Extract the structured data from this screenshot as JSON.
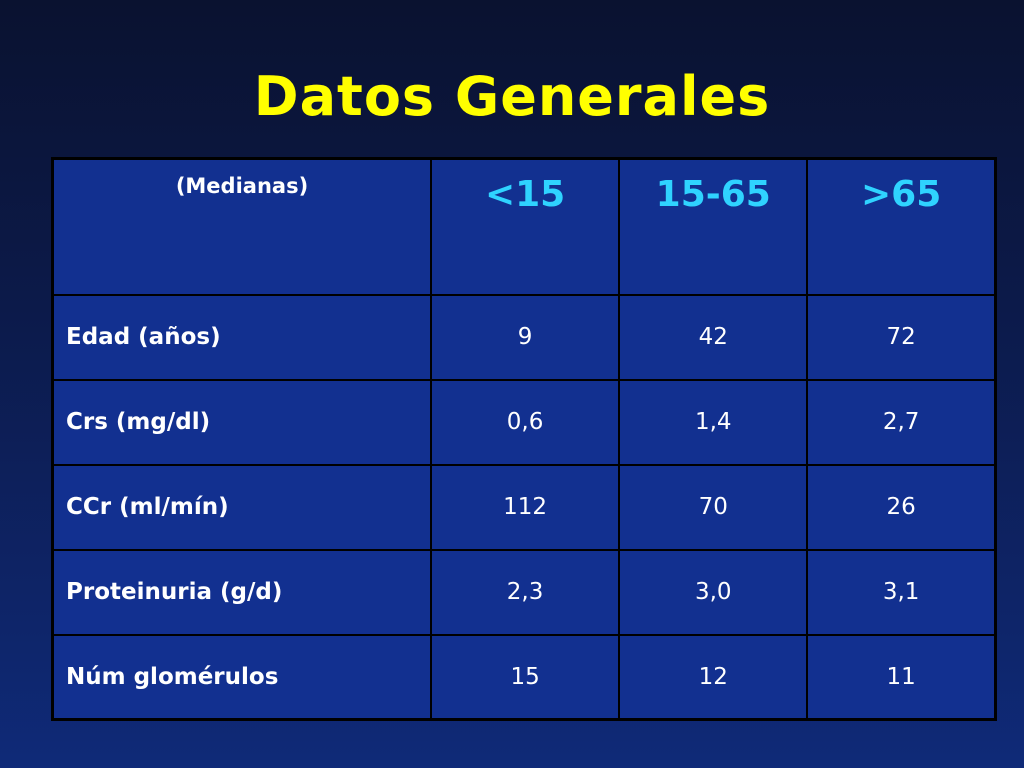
{
  "slide": {
    "title": "Datos Generales"
  },
  "table": {
    "corner_label": "(Medianas)",
    "columns": [
      "<15",
      "15-65",
      ">65"
    ],
    "rows": [
      {
        "label": "Edad (años)",
        "values": [
          "9",
          "42",
          "72"
        ]
      },
      {
        "label": "Crs (mg/dl)",
        "values": [
          "0,6",
          "1,4",
          "2,7"
        ]
      },
      {
        "label": "CCr (ml/mín)",
        "values": [
          "112",
          "70",
          "26"
        ]
      },
      {
        "label": "Proteinuria (g/d)",
        "values": [
          "2,3",
          "3,0",
          "3,1"
        ]
      },
      {
        "label": "Núm glomérulos",
        "values": [
          "15",
          "12",
          "11"
        ]
      }
    ]
  },
  "colors": {
    "title": "#ffff00",
    "column_header": "#2fd3ff",
    "cell_text": "#ffffff",
    "table_fill": "#123090",
    "background_top": "#0a1230",
    "background_bottom": "#0f2a78"
  }
}
